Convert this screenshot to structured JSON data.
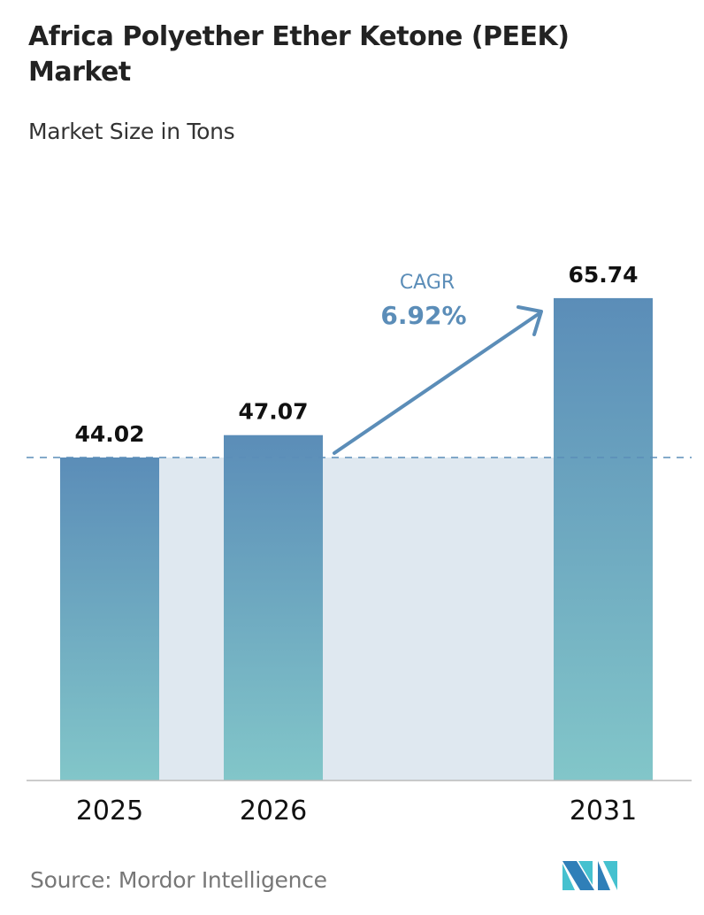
{
  "title": "Africa Polyether Ether Ketone (PEEK) Market",
  "subtitle": "Market Size in Tons",
  "source": "Source:  Mordor Intelligence",
  "logo_text": "MI",
  "colors": {
    "bar_top": "#5b8db8",
    "bar_bottom": "#82c6c9",
    "band": "#dfe8f0",
    "accent": "#5b8db8"
  },
  "chart_data": {
    "type": "bar",
    "categories": [
      "2025",
      "2026",
      "2031"
    ],
    "values": [
      44.02,
      47.07,
      65.74
    ],
    "data_labels": [
      "44.02",
      "47.07",
      "65.74"
    ],
    "annotation": {
      "label": "CAGR",
      "value": "6.92%"
    },
    "grid": false,
    "reference_line": 44.02
  }
}
